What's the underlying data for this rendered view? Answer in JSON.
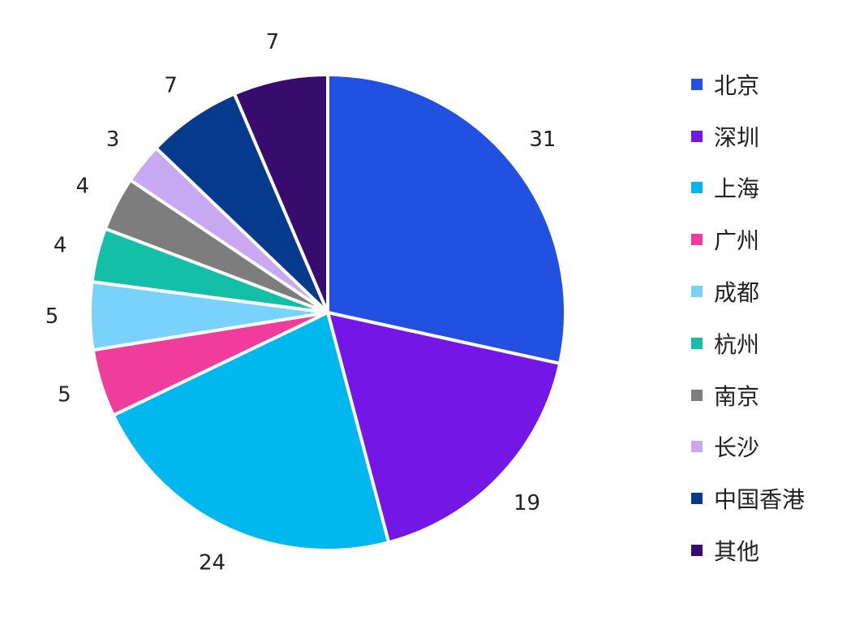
{
  "chart_data": {
    "type": "pie",
    "title": "",
    "categories": [
      "北京",
      "深圳",
      "上海",
      "广州",
      "成都",
      "杭州",
      "南京",
      "长沙",
      "中国香港",
      "其他"
    ],
    "values": [
      31,
      19,
      24,
      5,
      5,
      4,
      4,
      3,
      7,
      7
    ],
    "colors": [
      "#2250e0",
      "#7316e6",
      "#00b8ee",
      "#f03c9a",
      "#78d2fa",
      "#14bfa8",
      "#7d7d7d",
      "#c8a8f0",
      "#063a8c",
      "#380c6e"
    ],
    "legend_position": "right",
    "start_angle": "top",
    "direction": "clockwise"
  }
}
